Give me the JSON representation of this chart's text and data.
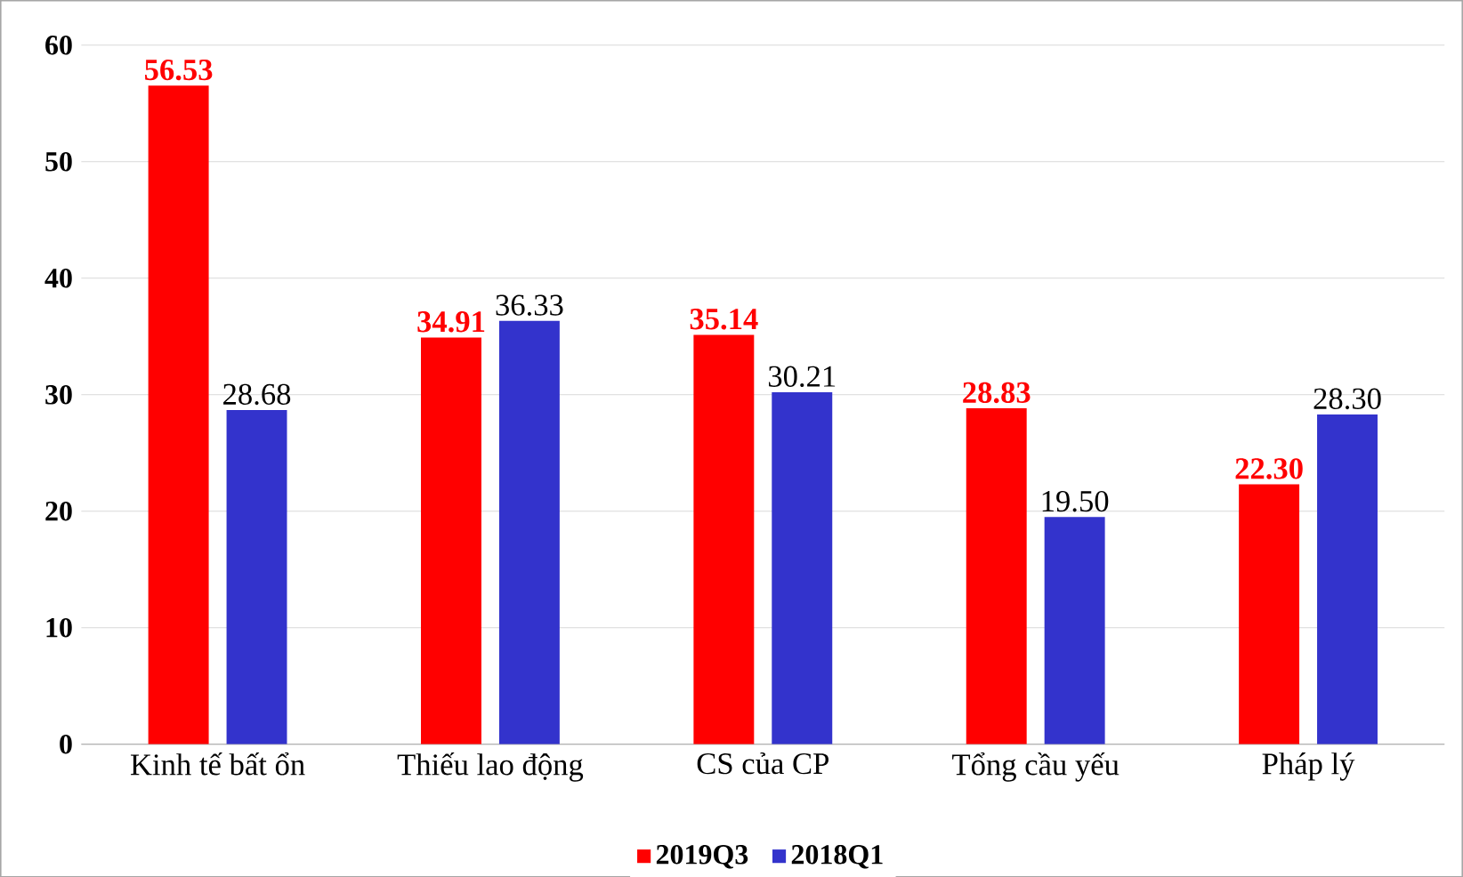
{
  "chart_data": {
    "type": "bar",
    "categories": [
      "Kinh tế bất ổn",
      "Thiếu lao động",
      "CS của CP",
      "Tổng cầu yếu",
      "Pháp lý"
    ],
    "series": [
      {
        "name": "2019Q3",
        "color": "#ff0000",
        "values": [
          56.53,
          34.91,
          35.14,
          28.83,
          22.3
        ],
        "value_labels": [
          "56.53",
          "34.91",
          "35.14",
          "28.83",
          "22.30"
        ]
      },
      {
        "name": "2018Q1",
        "color": "#3333cc",
        "values": [
          28.68,
          36.33,
          30.21,
          19.5,
          28.3
        ],
        "value_labels": [
          "28.68",
          "36.33",
          "30.21",
          "19.50",
          "28.30"
        ]
      }
    ],
    "ylim": [
      0,
      60
    ],
    "yticks": [
      0,
      10,
      20,
      30,
      40,
      50,
      60
    ],
    "grid": "y",
    "legend": "bottom"
  }
}
